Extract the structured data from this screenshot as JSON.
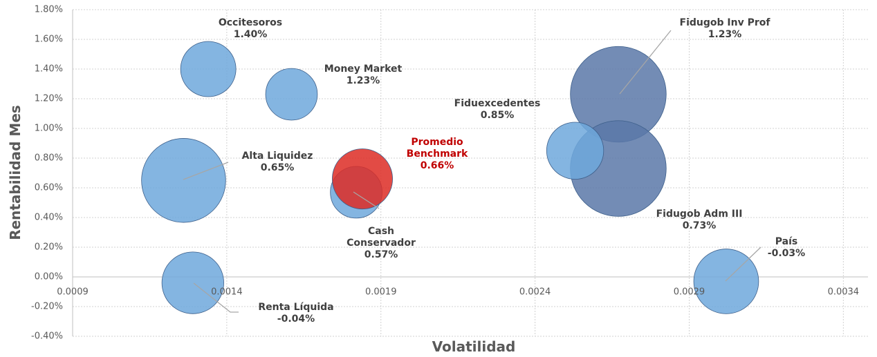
{
  "chart_data": {
    "type": "bubble",
    "x_label": "Volatilidad",
    "y_label": "Rentabilidad Mes",
    "xlim": [
      0.0009,
      0.00348
    ],
    "xticks": [
      0.0009,
      0.0014,
      0.0019,
      0.0024,
      0.0029,
      0.0034
    ],
    "ylim": [
      -0.4,
      1.8
    ],
    "yticks": [
      {
        "value": -0.4,
        "label": "-0.40%"
      },
      {
        "value": -0.2,
        "label": "-0.20%"
      },
      {
        "value": 0,
        "label": "0.00%"
      },
      {
        "value": 0.2,
        "label": "0.20%"
      },
      {
        "value": 0.4,
        "label": "0.40%"
      },
      {
        "value": 0.6,
        "label": "0.60%"
      },
      {
        "value": 0.8,
        "label": "0.80%"
      },
      {
        "value": 1.0,
        "label": "1.00%"
      },
      {
        "value": 1.2,
        "label": "1.20%"
      },
      {
        "value": 1.4,
        "label": "1.40%"
      },
      {
        "value": 1.6,
        "label": "1.60%"
      },
      {
        "value": 1.8,
        "label": "1.80%"
      }
    ],
    "grid": true,
    "points": [
      {
        "name": "Occitesoros",
        "x": 0.00134,
        "y": 1.4,
        "size": 16,
        "value_label": "1.40%",
        "color": "#6fa8dc"
      },
      {
        "name": "Money Market",
        "x": 0.00161,
        "y": 1.23,
        "size": 14,
        "value_label": "1.23%",
        "color": "#6fa8dc"
      },
      {
        "name": "Alta Liquidez",
        "x": 0.00126,
        "y": 0.65,
        "size": 37,
        "value_label": "0.65%",
        "color": "#6fa8dc"
      },
      {
        "name": "Cash Conservador",
        "x": 0.00182,
        "y": 0.57,
        "size": 14,
        "value_label": "0.57%",
        "color": "#6fa8dc"
      },
      {
        "name": "Promedio Benchmark",
        "x": 0.00184,
        "y": 0.66,
        "size": 19,
        "value_label": "0.66%",
        "color": "#dd2b25"
      },
      {
        "name": "Fidugob Inv Prof",
        "x": 0.00267,
        "y": 1.23,
        "size": 48,
        "value_label": "1.23%",
        "color": "#5a78a8"
      },
      {
        "name": "Fidugob Adm III",
        "x": 0.00267,
        "y": 0.73,
        "size": 48,
        "value_label": "0.73%",
        "color": "#5a78a8"
      },
      {
        "name": "Fiduexcedentes",
        "x": 0.00253,
        "y": 0.85,
        "size": 17,
        "value_label": "0.85%",
        "color": "#6fa8dc"
      },
      {
        "name": "País",
        "x": 0.00302,
        "y": -0.03,
        "size": 22,
        "value_label": "-0.03%",
        "color": "#6fa8dc"
      },
      {
        "name": "Renta Líquida",
        "x": 0.00129,
        "y": -0.04,
        "size": 20,
        "value_label": "-0.04%",
        "color": "#6fa8dc"
      }
    ]
  }
}
